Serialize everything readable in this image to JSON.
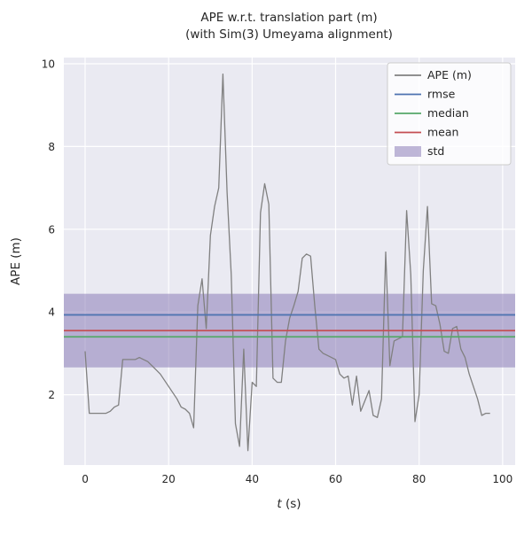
{
  "chart_data": {
    "type": "line",
    "title": "APE w.r.t. translation part (m)\n(with Sim(3) Umeyama alignment)",
    "title_line1": "APE w.r.t. translation part (m)",
    "title_line2": "(with Sim(3) Umeyama alignment)",
    "xlabel": "t (s)",
    "xlabel_var": "t",
    "xlabel_rest": " (s)",
    "ylabel": "APE (m)",
    "xlim": [
      -5.1,
      103
    ],
    "ylim": [
      0.3,
      10.15
    ],
    "xticks": [
      0,
      20,
      40,
      60,
      80,
      100
    ],
    "yticks": [
      2,
      4,
      6,
      8,
      10
    ],
    "grid": true,
    "legend_position": "upper right",
    "colors": {
      "background": "#EAEAF2",
      "grid": "#FFFFFF",
      "ape": "#808080",
      "rmse": "#4C72B0",
      "median": "#55A868",
      "mean": "#C44E52",
      "std": "#8172B2"
    },
    "stats": {
      "rmse": 3.93,
      "median": 3.4,
      "mean": 3.55,
      "std_band": [
        2.66,
        4.44
      ]
    },
    "legend": [
      {
        "key": "ape",
        "label": "APE (m)",
        "color": "#808080",
        "swatch": "line"
      },
      {
        "key": "rmse",
        "label": "rmse",
        "color": "#4C72B0",
        "swatch": "line"
      },
      {
        "key": "median",
        "label": "median",
        "color": "#55A868",
        "swatch": "line"
      },
      {
        "key": "mean",
        "label": "mean",
        "color": "#C44E52",
        "swatch": "line"
      },
      {
        "key": "std",
        "label": "std",
        "color": "#8172B2",
        "swatch": "patch"
      }
    ],
    "series": [
      {
        "name": "APE (m)",
        "x": [
          0,
          1,
          2,
          3,
          4,
          5,
          6,
          7,
          8,
          9,
          10,
          11,
          12,
          13,
          14,
          15,
          16,
          17,
          18,
          19,
          20,
          21,
          22,
          23,
          24,
          25,
          26,
          27,
          28,
          29,
          30,
          31,
          32,
          33,
          34,
          35,
          36,
          37,
          38,
          39,
          40,
          41,
          42,
          43,
          44,
          45,
          46,
          47,
          48,
          49,
          50,
          51,
          52,
          53,
          54,
          55,
          56,
          57,
          58,
          59,
          60,
          61,
          62,
          63,
          64,
          65,
          66,
          67,
          68,
          69,
          70,
          71,
          72,
          73,
          74,
          75,
          76,
          77,
          78,
          79,
          80,
          81,
          82,
          83,
          84,
          85,
          86,
          87,
          88,
          89,
          90,
          91,
          92,
          93,
          94,
          95,
          96,
          97
        ],
        "y": [
          3.05,
          1.55,
          1.55,
          1.55,
          1.55,
          1.55,
          1.6,
          1.7,
          1.75,
          2.85,
          2.85,
          2.85,
          2.85,
          2.9,
          2.85,
          2.8,
          2.7,
          2.6,
          2.5,
          2.35,
          2.2,
          2.05,
          1.9,
          1.7,
          1.65,
          1.55,
          1.2,
          4.15,
          4.8,
          3.6,
          5.85,
          6.55,
          7.0,
          9.75,
          6.9,
          4.9,
          1.3,
          0.75,
          3.1,
          0.65,
          2.3,
          2.2,
          6.4,
          7.1,
          6.6,
          2.4,
          2.3,
          2.3,
          3.3,
          3.85,
          4.15,
          4.5,
          5.3,
          5.4,
          5.35,
          4.15,
          3.1,
          3.0,
          2.95,
          2.9,
          2.85,
          2.5,
          2.4,
          2.45,
          1.75,
          2.45,
          1.6,
          1.85,
          2.1,
          1.5,
          1.45,
          1.9,
          5.45,
          2.7,
          3.3,
          3.35,
          3.4,
          6.45,
          4.9,
          1.35,
          2.0,
          5.0,
          6.55,
          4.2,
          4.15,
          3.7,
          3.05,
          3.0,
          3.6,
          3.65,
          3.1,
          2.9,
          2.5,
          2.2,
          1.9,
          1.5,
          1.55,
          1.55
        ]
      }
    ]
  }
}
